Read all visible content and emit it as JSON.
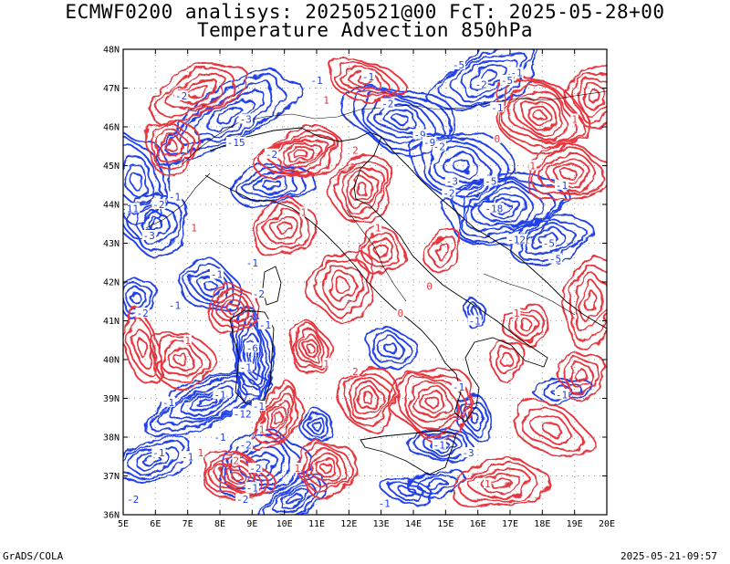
{
  "title_line1": "ECMWF0200 analisys: 20250521@00 FcT: 2025-05-28+00",
  "title_line2": "Temperature Advection 850hPa",
  "footer_left": "GrADS/COLA",
  "footer_right": "2025-05-21-09:57",
  "lon_labels": [
    "5E",
    "6E",
    "7E",
    "8E",
    "9E",
    "10E",
    "11E",
    "12E",
    "13E",
    "14E",
    "15E",
    "16E",
    "17E",
    "18E",
    "19E",
    "20E"
  ],
  "lat_labels": [
    "36N",
    "37N",
    "38N",
    "39N",
    "40N",
    "41N",
    "42N",
    "43N",
    "44N",
    "45N",
    "46N",
    "47N",
    "48N"
  ],
  "colors": {
    "warm": "#e8343c",
    "cold": "#2040e8",
    "border": "#000000",
    "grid": "#9a9a9a"
  },
  "contour_labels": [
    {
      "t": "-1",
      "lon": 11.0,
      "lat": 47.2,
      "c": "cold"
    },
    {
      "t": "-2",
      "lon": 6.8,
      "lat": 46.8,
      "c": "cold"
    },
    {
      "t": "-3",
      "lon": 8.8,
      "lat": 46.2,
      "c": "cold"
    },
    {
      "t": "-15",
      "lon": 8.5,
      "lat": 45.6,
      "c": "cold"
    },
    {
      "t": "-2",
      "lon": 9.6,
      "lat": 45.3,
      "c": "cold"
    },
    {
      "t": "-1",
      "lon": 12.6,
      "lat": 47.3,
      "c": "cold"
    },
    {
      "t": "-2",
      "lon": 13.2,
      "lat": 46.6,
      "c": "cold"
    },
    {
      "t": "-9",
      "lon": 14.2,
      "lat": 45.8,
      "c": "cold"
    },
    {
      "t": "-2",
      "lon": 14.8,
      "lat": 45.5,
      "c": "cold"
    },
    {
      "t": "-9",
      "lon": 14.5,
      "lat": 45.6,
      "c": "cold"
    },
    {
      "t": "-5",
      "lon": 15.4,
      "lat": 47.6,
      "c": "cold"
    },
    {
      "t": "-2",
      "lon": 16.1,
      "lat": 47.1,
      "c": "cold"
    },
    {
      "t": "-1",
      "lon": 17.2,
      "lat": 47.4,
      "c": "cold"
    },
    {
      "t": "-5",
      "lon": 16.9,
      "lat": 47.2,
      "c": "cold"
    },
    {
      "t": "-1",
      "lon": 16.6,
      "lat": 46.5,
      "c": "cold"
    },
    {
      "t": "-3",
      "lon": 15.2,
      "lat": 44.6,
      "c": "cold"
    },
    {
      "t": "-5",
      "lon": 16.4,
      "lat": 44.6,
      "c": "cold"
    },
    {
      "t": "-2",
      "lon": 15.1,
      "lat": 44.3,
      "c": "cold"
    },
    {
      "t": "-18",
      "lon": 16.5,
      "lat": 43.9,
      "c": "cold"
    },
    {
      "t": "-12",
      "lon": 17.2,
      "lat": 43.1,
      "c": "cold"
    },
    {
      "t": "-5",
      "lon": 18.2,
      "lat": 43.0,
      "c": "cold"
    },
    {
      "t": "-5",
      "lon": 18.4,
      "lat": 42.6,
      "c": "cold"
    },
    {
      "t": "-1",
      "lon": 18.6,
      "lat": 44.5,
      "c": "cold"
    },
    {
      "t": "-11",
      "lon": 5.2,
      "lat": 43.9,
      "c": "cold"
    },
    {
      "t": "-2",
      "lon": 6.1,
      "lat": 44.0,
      "c": "cold"
    },
    {
      "t": "-1",
      "lon": 6.6,
      "lat": 44.2,
      "c": "cold"
    },
    {
      "t": "-3",
      "lon": 5.8,
      "lat": 43.2,
      "c": "cold"
    },
    {
      "t": "-1",
      "lon": 7.9,
      "lat": 42.2,
      "c": "cold"
    },
    {
      "t": "-2",
      "lon": 9.2,
      "lat": 41.7,
      "c": "cold"
    },
    {
      "t": "-1",
      "lon": 9.0,
      "lat": 42.5,
      "c": "cold"
    },
    {
      "t": "-1",
      "lon": 6.6,
      "lat": 41.4,
      "c": "cold"
    },
    {
      "t": "-2",
      "lon": 5.6,
      "lat": 41.2,
      "c": "cold"
    },
    {
      "t": "-1",
      "lon": 9.4,
      "lat": 40.9,
      "c": "cold"
    },
    {
      "t": "-6",
      "lon": 9.0,
      "lat": 40.3,
      "c": "cold"
    },
    {
      "t": "-1",
      "lon": 8.8,
      "lat": 39.8,
      "c": "cold"
    },
    {
      "t": "-1",
      "lon": 6.4,
      "lat": 38.9,
      "c": "cold"
    },
    {
      "t": "-1",
      "lon": 8.0,
      "lat": 39.1,
      "c": "cold"
    },
    {
      "t": "-12",
      "lon": 8.7,
      "lat": 38.6,
      "c": "cold"
    },
    {
      "t": "-1",
      "lon": 9.2,
      "lat": 38.8,
      "c": "cold"
    },
    {
      "t": "-1",
      "lon": 8.0,
      "lat": 38.0,
      "c": "cold"
    },
    {
      "t": "-2",
      "lon": 8.8,
      "lat": 37.8,
      "c": "cold"
    },
    {
      "t": "-1",
      "lon": 6.1,
      "lat": 37.6,
      "c": "cold"
    },
    {
      "t": "-1",
      "lon": 7.0,
      "lat": 37.5,
      "c": "cold"
    },
    {
      "t": "-2",
      "lon": 9.1,
      "lat": 37.2,
      "c": "cold"
    },
    {
      "t": "-1",
      "lon": 9.0,
      "lat": 36.7,
      "c": "cold"
    },
    {
      "t": "-2",
      "lon": 8.7,
      "lat": 36.4,
      "c": "cold"
    },
    {
      "t": "-2",
      "lon": 5.3,
      "lat": 36.4,
      "c": "cold"
    },
    {
      "t": "-3",
      "lon": 15.7,
      "lat": 37.6,
      "c": "cold"
    },
    {
      "t": "-1",
      "lon": 14.8,
      "lat": 37.8,
      "c": "cold"
    },
    {
      "t": "-1",
      "lon": 13.1,
      "lat": 36.3,
      "c": "cold"
    },
    {
      "t": "-1",
      "lon": 15.9,
      "lat": 41.0,
      "c": "cold"
    },
    {
      "t": "-1",
      "lon": 18.6,
      "lat": 39.1,
      "c": "cold"
    },
    {
      "t": "-1",
      "lon": 15.4,
      "lat": 39.3,
      "c": "cold"
    },
    {
      "t": "1",
      "lon": 11.3,
      "lat": 46.7,
      "c": "warm"
    },
    {
      "t": "2",
      "lon": 12.2,
      "lat": 45.4,
      "c": "warm"
    },
    {
      "t": "1",
      "lon": 10.6,
      "lat": 43.8,
      "c": "warm"
    },
    {
      "t": "1",
      "lon": 12.9,
      "lat": 43.4,
      "c": "warm"
    },
    {
      "t": "0",
      "lon": 14.5,
      "lat": 41.9,
      "c": "warm"
    },
    {
      "t": "0",
      "lon": 13.6,
      "lat": 41.2,
      "c": "warm"
    },
    {
      "t": "1",
      "lon": 7.2,
      "lat": 43.4,
      "c": "warm"
    },
    {
      "t": "1",
      "lon": 7.0,
      "lat": 40.5,
      "c": "warm"
    },
    {
      "t": "2",
      "lon": 12.2,
      "lat": 39.7,
      "c": "warm"
    },
    {
      "t": "1",
      "lon": 11.3,
      "lat": 39.9,
      "c": "warm"
    },
    {
      "t": "1",
      "lon": 9.3,
      "lat": 38.2,
      "c": "warm"
    },
    {
      "t": "1",
      "lon": 7.4,
      "lat": 37.6,
      "c": "warm"
    },
    {
      "t": "2",
      "lon": 8.5,
      "lat": 37.4,
      "c": "warm"
    },
    {
      "t": "1",
      "lon": 10.4,
      "lat": 37.2,
      "c": "warm"
    },
    {
      "t": "1",
      "lon": 17.2,
      "lat": 41.2,
      "c": "warm"
    },
    {
      "t": "1",
      "lon": 17.7,
      "lat": 45.0,
      "c": "warm"
    },
    {
      "t": "1",
      "lon": 19.0,
      "lat": 46.2,
      "c": "warm"
    },
    {
      "t": "1",
      "lon": 16.3,
      "lat": 36.8,
      "c": "warm"
    },
    {
      "t": "0",
      "lon": 16.6,
      "lat": 45.7,
      "c": "warm"
    }
  ]
}
